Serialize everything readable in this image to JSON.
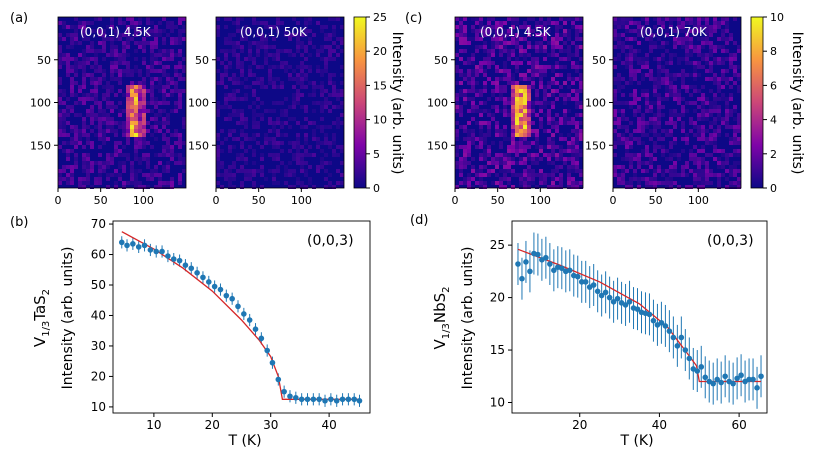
{
  "chart_data": [
    {
      "type": "heatmap",
      "panel": "(a)",
      "label": "(0,0,1) 4.5K",
      "xlim": [
        0,
        150
      ],
      "ylim": [
        200,
        0
      ],
      "xticks": [
        0,
        50,
        100
      ],
      "yticks": [
        50,
        100,
        150
      ],
      "colormap": "plasma",
      "clim": [
        0,
        25
      ],
      "feature": {
        "x_center": 90,
        "y_from": 80,
        "y_to": 140,
        "peak": 25
      }
    },
    {
      "type": "heatmap",
      "label": "(0,0,1) 50K",
      "xlim": [
        0,
        150
      ],
      "ylim": [
        200,
        0
      ],
      "xticks": [
        0,
        50,
        100
      ],
      "yticks": [
        50,
        100,
        150
      ],
      "colormap": "plasma",
      "clim": [
        0,
        25
      ],
      "colorbar": {
        "ticks": [
          0,
          5,
          10,
          15,
          20,
          25
        ],
        "label": "Intensity (arb. units)"
      }
    },
    {
      "type": "heatmap",
      "panel": "(c)",
      "label": "(0,0,1) 4.5K",
      "xlim": [
        0,
        150
      ],
      "ylim": [
        200,
        0
      ],
      "xticks": [
        0,
        50,
        100
      ],
      "yticks": [
        50,
        100,
        150
      ],
      "colormap": "plasma",
      "clim": [
        0,
        10
      ],
      "feature": {
        "x_center": 78,
        "y_from": 80,
        "y_to": 140,
        "peak": 10
      }
    },
    {
      "type": "heatmap",
      "label": "(0,0,1) 70K",
      "xlim": [
        0,
        150
      ],
      "ylim": [
        200,
        0
      ],
      "xticks": [
        0,
        50,
        100
      ],
      "yticks": [
        50,
        100,
        150
      ],
      "colormap": "plasma",
      "clim": [
        0,
        10
      ],
      "colorbar": {
        "ticks": [
          0,
          2,
          4,
          6,
          8,
          10
        ],
        "label": "Intensity (arb. units)"
      }
    },
    {
      "type": "scatter",
      "panel": "(b)",
      "annotation": "(0,0,3)",
      "xlabel": "T (K)",
      "ylabel_main": "Intensity (arb. units)",
      "ylabel_material": {
        "base": "V",
        "sub": "1/3",
        "mid": "TaS",
        "sub2": "2"
      },
      "xlim": [
        3,
        47
      ],
      "ylim": [
        8,
        71
      ],
      "xticks": [
        10,
        20,
        30,
        40
      ],
      "yticks": [
        10,
        20,
        30,
        40,
        50,
        60,
        70
      ],
      "marker_color": "#1f77b4",
      "fit_color": "#d62728",
      "x": [
        4.5,
        5.4,
        6.4,
        7.4,
        8.4,
        9.4,
        10.4,
        11.4,
        12.4,
        13.4,
        14.4,
        15.4,
        16.4,
        17.4,
        18.4,
        19.4,
        20.4,
        21.4,
        22.4,
        23.4,
        24.4,
        25.4,
        26.4,
        27.4,
        28.4,
        29.4,
        30.3,
        31.3,
        32.3,
        33.3,
        34.3,
        35.3,
        36.3,
        37.3,
        38.3,
        39.3,
        40.3,
        41.3,
        42.3,
        43.3,
        44.3,
        45.2
      ],
      "y": [
        64,
        63,
        63.5,
        62.5,
        63,
        61.5,
        61,
        61,
        59.5,
        58.5,
        58,
        56.5,
        55.5,
        54,
        52.5,
        51,
        49.5,
        48.5,
        46.5,
        45.5,
        43,
        40.5,
        38.5,
        35.5,
        32.5,
        28.5,
        24.5,
        19,
        15,
        13.5,
        13,
        12.5,
        12.5,
        12.5,
        12.5,
        12,
        12.5,
        12,
        12.5,
        12.5,
        12.5,
        12
      ],
      "yerr": 2.0,
      "fit": {
        "x": [
          4.5,
          10,
          15,
          20,
          25,
          28,
          30,
          31.3,
          32,
          45
        ],
        "y": [
          67.5,
          61.8,
          55.5,
          48,
          38.5,
          32,
          26.5,
          20,
          12.5,
          12.5
        ]
      }
    },
    {
      "type": "scatter",
      "panel": "(d)",
      "annotation": "(0,0,3)",
      "xlabel": "T (K)",
      "ylabel_main": "Intensity (arb. units)",
      "ylabel_material": {
        "base": "V",
        "sub": "1/3",
        "mid": "NbS",
        "sub2": "2"
      },
      "xlim": [
        3,
        67
      ],
      "ylim": [
        9,
        27.3
      ],
      "xticks": [
        20,
        40,
        60
      ],
      "yticks": [
        10,
        15,
        20,
        25
      ],
      "marker_color": "#1f77b4",
      "fit_color": "#d62728",
      "x": [
        4.5,
        5.5,
        6.5,
        7.5,
        8.5,
        9.5,
        10.5,
        11.5,
        12.5,
        13.5,
        14.5,
        15.5,
        16.5,
        17.5,
        18.5,
        19.5,
        20.5,
        21.5,
        22.5,
        23.5,
        24.5,
        25.5,
        26.5,
        27.5,
        28.5,
        29.5,
        30.5,
        31.5,
        32.5,
        33.5,
        34.5,
        35.5,
        36.5,
        37.5,
        38.5,
        39.5,
        40.5,
        41.5,
        42.5,
        43.5,
        44.5,
        45.5,
        46.5,
        47.5,
        48.5,
        49.5,
        50.5,
        51.5,
        52.5,
        53.5,
        54.5,
        55.5,
        56.5,
        57.5,
        58.5,
        59.5,
        60.5,
        61.5,
        62.5,
        63.5,
        64.5,
        65.5
      ],
      "y": [
        23.2,
        21.8,
        23.4,
        22.5,
        24.2,
        24.1,
        23.6,
        23.8,
        23.2,
        22.6,
        22.9,
        22.8,
        22.5,
        22.6,
        22.1,
        22,
        21.5,
        21.5,
        21,
        21.2,
        20.6,
        20.2,
        20.5,
        20,
        19.6,
        19.9,
        19.5,
        19.3,
        19.6,
        19,
        18.9,
        18.6,
        18.5,
        18.4,
        17.8,
        17.4,
        17.6,
        17.3,
        16.8,
        16.2,
        15.4,
        16.2,
        15,
        14.2,
        13.2,
        13,
        13.4,
        12.4,
        12,
        11.8,
        12.2,
        11.9,
        12.5,
        12,
        11.8,
        12.3,
        12.6,
        12,
        12.2,
        12.2,
        11.4,
        12.5
      ],
      "yerr": 2.0,
      "fit": {
        "x": [
          4.5,
          15,
          25,
          35,
          42,
          46,
          49.3,
          50,
          65.5
        ],
        "y": [
          24.6,
          23.1,
          21.5,
          19.4,
          17.2,
          15.2,
          13.5,
          12,
          12
        ]
      }
    }
  ]
}
